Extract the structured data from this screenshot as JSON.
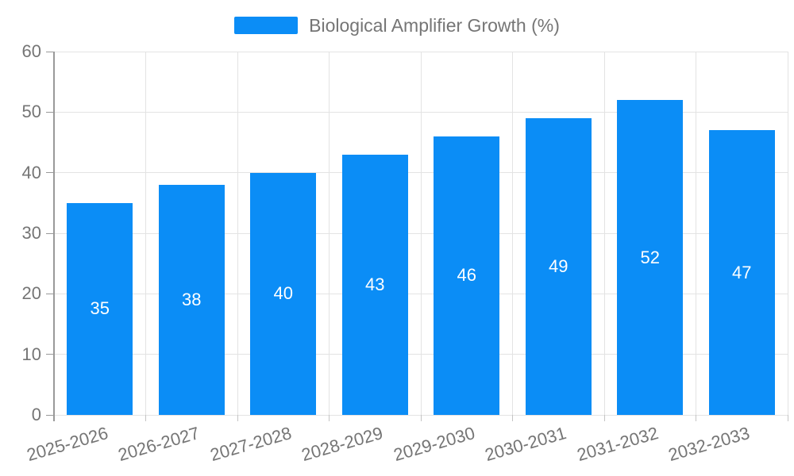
{
  "chart_data": {
    "type": "bar",
    "title": "Biological Amplifier Growth (%)",
    "categories": [
      "2025-2026",
      "2026-2027",
      "2027-2028",
      "2028-2029",
      "2029-2030",
      "2030-2031",
      "2031-2032",
      "2032-2033"
    ],
    "values": [
      35,
      38,
      40,
      43,
      46,
      49,
      52,
      47
    ],
    "xlabel": "",
    "ylabel": "",
    "ylim": [
      0,
      60
    ],
    "yticks": [
      0,
      10,
      20,
      30,
      40,
      50,
      60
    ],
    "grid": true,
    "legend_position": "top-center",
    "bar_color": "#0b8df6",
    "value_label_color": "#ffffff",
    "axis_text_color": "#757575",
    "grid_color": "#e3e3e3",
    "axis_line_color": "#999999",
    "x_tick_color": "#c4c4c4",
    "x_label_rotation_deg": -16
  }
}
